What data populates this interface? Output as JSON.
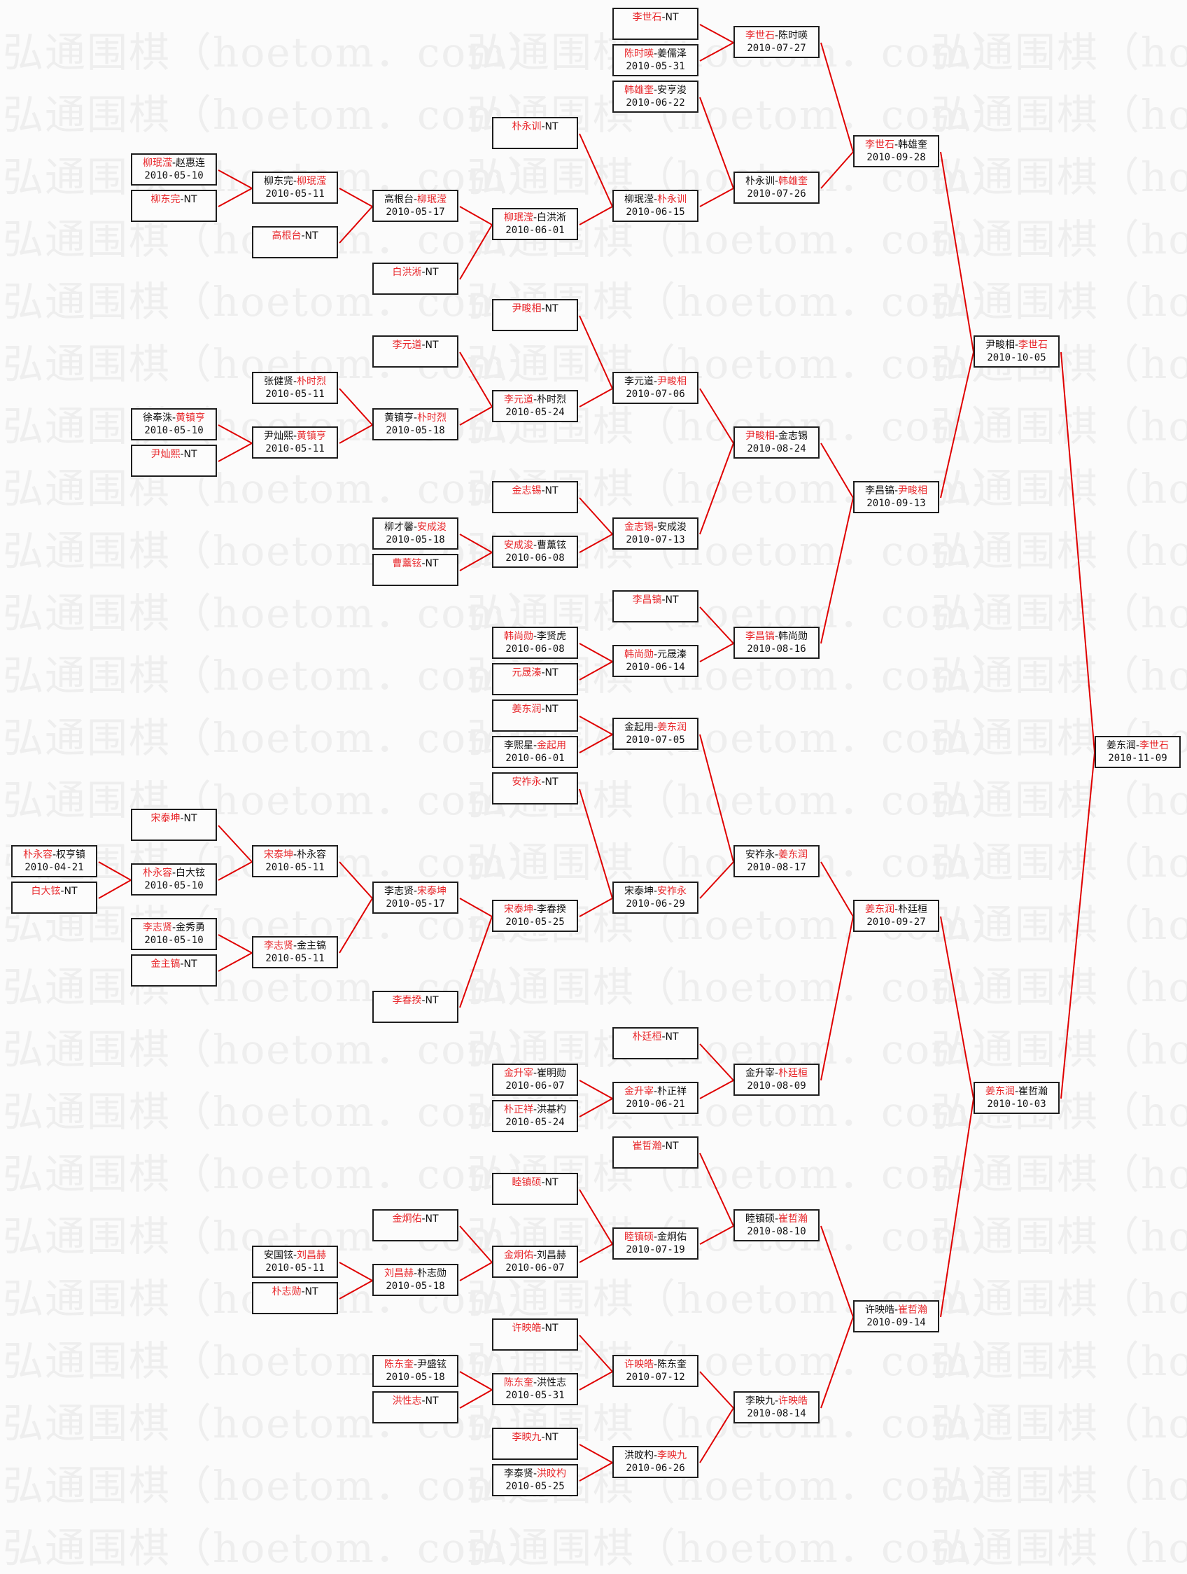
{
  "watermark_text": "弘通围棋（hoetom．com）",
  "colors": {
    "winner": "#e8262a",
    "connector": "#e00000",
    "border": "#1e1e1e"
  },
  "columns": [
    [
      {
        "p1": "朴永容",
        "p2": "权亨镇",
        "date": "2010-04-21",
        "winner": 1
      },
      {
        "p1": "白大铉",
        "p2": "NT",
        "date": "",
        "winner": 1
      }
    ],
    [
      {
        "p1": "柳珉滢",
        "p2": "赵惠连",
        "date": "2010-05-10",
        "winner": 1
      },
      {
        "p1": "柳东完",
        "p2": "NT",
        "date": "",
        "winner": 1
      },
      {
        "p1": "徐奉洙",
        "p2": "黄镇亨",
        "date": "2010-05-10",
        "winner": 2
      },
      {
        "p1": "尹灿熙",
        "p2": "NT",
        "date": "",
        "winner": 1
      },
      {
        "p1": "宋泰坤",
        "p2": "NT",
        "date": "",
        "winner": 1
      },
      {
        "p1": "朴永容",
        "p2": "白大铉",
        "date": "2010-05-10",
        "winner": 1
      },
      {
        "p1": "李志贤",
        "p2": "金秀勇",
        "date": "2010-05-10",
        "winner": 1
      },
      {
        "p1": "金主镐",
        "p2": "NT",
        "date": "",
        "winner": 1
      }
    ],
    [
      {
        "p1": "柳东完",
        "p2": "柳珉滢",
        "date": "2010-05-11",
        "winner": 2
      },
      {
        "p1": "高根台",
        "p2": "NT",
        "date": "",
        "winner": 1
      },
      {
        "p1": "张健贤",
        "p2": "朴时烈",
        "date": "2010-05-11",
        "winner": 2
      },
      {
        "p1": "尹灿熙",
        "p2": "黄镇亨",
        "date": "2010-05-11",
        "winner": 2
      },
      {
        "p1": "宋泰坤",
        "p2": "朴永容",
        "date": "2010-05-11",
        "winner": 1
      },
      {
        "p1": "李志贤",
        "p2": "金主镐",
        "date": "2010-05-11",
        "winner": 1
      },
      {
        "p1": "安国铉",
        "p2": "刘昌赫",
        "date": "2010-05-11",
        "winner": 2
      },
      {
        "p1": "朴志勋",
        "p2": "NT",
        "date": "",
        "winner": 1
      }
    ],
    [
      {
        "p1": "高根台",
        "p2": "柳珉滢",
        "date": "2010-05-17",
        "winner": 2
      },
      {
        "p1": "白洪淅",
        "p2": "NT",
        "date": "",
        "winner": 1
      },
      {
        "p1": "李元道",
        "p2": "NT",
        "date": "",
        "winner": 1
      },
      {
        "p1": "黄镇亨",
        "p2": "朴时烈",
        "date": "2010-05-18",
        "winner": 2
      },
      {
        "p1": "柳才馨",
        "p2": "安成浚",
        "date": "2010-05-18",
        "winner": 2
      },
      {
        "p1": "曹薰铉",
        "p2": "NT",
        "date": "",
        "winner": 1
      },
      {
        "p1": "李志贤",
        "p2": "宋泰坤",
        "date": "2010-05-17",
        "winner": 2
      },
      {
        "p1": "李春揆",
        "p2": "NT",
        "date": "",
        "winner": 1
      },
      {
        "p1": "金炯佑",
        "p2": "NT",
        "date": "",
        "winner": 1
      },
      {
        "p1": "刘昌赫",
        "p2": "朴志勋",
        "date": "2010-05-18",
        "winner": 1
      },
      {
        "p1": "陈东奎",
        "p2": "尹盛铉",
        "date": "2010-05-18",
        "winner": 1
      },
      {
        "p1": "洪性志",
        "p2": "NT",
        "date": "",
        "winner": 1
      }
    ],
    [
      {
        "p1": "朴永训",
        "p2": "NT",
        "date": "",
        "winner": 1
      },
      {
        "p1": "柳珉滢",
        "p2": "白洪淅",
        "date": "2010-06-01",
        "winner": 1
      },
      {
        "p1": "尹畯相",
        "p2": "NT",
        "date": "",
        "winner": 1
      },
      {
        "p1": "李元道",
        "p2": "朴时烈",
        "date": "2010-05-24",
        "winner": 1
      },
      {
        "p1": "金志锡",
        "p2": "NT",
        "date": "",
        "winner": 1
      },
      {
        "p1": "安成浚",
        "p2": "曹薰铉",
        "date": "2010-06-08",
        "winner": 1
      },
      {
        "p1": "韩尚勋",
        "p2": "李贤虎",
        "date": "2010-06-08",
        "winner": 1
      },
      {
        "p1": "元晟溱",
        "p2": "NT",
        "date": "",
        "winner": 1
      },
      {
        "p1": "姜东润",
        "p2": "NT",
        "date": "",
        "winner": 1
      },
      {
        "p1": "李熙星",
        "p2": "金起用",
        "date": "2010-06-01",
        "winner": 2
      },
      {
        "p1": "安祚永",
        "p2": "NT",
        "date": "",
        "winner": 1
      },
      {
        "p1": "宋泰坤",
        "p2": "李春揆",
        "date": "2010-05-25",
        "winner": 1
      },
      {
        "p1": "金升宰",
        "p2": "崔明勋",
        "date": "2010-06-07",
        "winner": 1
      },
      {
        "p1": "朴正祥",
        "p2": "洪基杓",
        "date": "2010-05-24",
        "winner": 1
      },
      {
        "p1": "睦镇硕",
        "p2": "NT",
        "date": "",
        "winner": 1
      },
      {
        "p1": "金炯佑",
        "p2": "刘昌赫",
        "date": "2010-06-07",
        "winner": 1
      },
      {
        "p1": "许映皓",
        "p2": "NT",
        "date": "",
        "winner": 1
      },
      {
        "p1": "陈东奎",
        "p2": "洪性志",
        "date": "2010-05-31",
        "winner": 1
      },
      {
        "p1": "李映九",
        "p2": "NT",
        "date": "",
        "winner": 1
      },
      {
        "p1": "李泰贤",
        "p2": "洪旼杓",
        "date": "2010-05-25",
        "winner": 2
      }
    ],
    [
      {
        "p1": "李世石",
        "p2": "NT",
        "date": "",
        "winner": 1
      },
      {
        "p1": "陈时暎",
        "p2": "姜儒泽",
        "date": "2010-05-31",
        "winner": 1
      },
      {
        "p1": "韩雄奎",
        "p2": "安亨浚",
        "date": "2010-06-22",
        "winner": 1
      },
      {
        "p1": "柳珉滢",
        "p2": "朴永训",
        "date": "2010-06-15",
        "winner": 2
      },
      {
        "p1": "李元道",
        "p2": "尹畯相",
        "date": "2010-07-06",
        "winner": 2
      },
      {
        "p1": "金志锡",
        "p2": "安成浚",
        "date": "2010-07-13",
        "winner": 1
      },
      {
        "p1": "李昌镐",
        "p2": "NT",
        "date": "",
        "winner": 1
      },
      {
        "p1": "韩尚勋",
        "p2": "元晟溱",
        "date": "2010-06-14",
        "winner": 1
      },
      {
        "p1": "金起用",
        "p2": "姜东润",
        "date": "2010-07-05",
        "winner": 2
      },
      {
        "p1": "宋泰坤",
        "p2": "安祚永",
        "date": "2010-06-29",
        "winner": 2
      },
      {
        "p1": "朴廷桓",
        "p2": "NT",
        "date": "",
        "winner": 1
      },
      {
        "p1": "金升宰",
        "p2": "朴正祥",
        "date": "2010-06-21",
        "winner": 1
      },
      {
        "p1": "崔哲瀚",
        "p2": "NT",
        "date": "",
        "winner": 1
      },
      {
        "p1": "睦镇硕",
        "p2": "金炯佑",
        "date": "2010-07-19",
        "winner": 1
      },
      {
        "p1": "许映皓",
        "p2": "陈东奎",
        "date": "2010-07-12",
        "winner": 1
      },
      {
        "p1": "洪旼杓",
        "p2": "李映九",
        "date": "2010-06-26",
        "winner": 2
      }
    ],
    [
      {
        "p1": "李世石",
        "p2": "陈时暎",
        "date": "2010-07-27",
        "winner": 1
      },
      {
        "p1": "朴永训",
        "p2": "韩雄奎",
        "date": "2010-07-26",
        "winner": 2
      },
      {
        "p1": "尹畯相",
        "p2": "金志锡",
        "date": "2010-08-24",
        "winner": 1
      },
      {
        "p1": "李昌镐",
        "p2": "韩尚勋",
        "date": "2010-08-16",
        "winner": 1
      },
      {
        "p1": "安祚永",
        "p2": "姜东润",
        "date": "2010-08-17",
        "winner": 2
      },
      {
        "p1": "金升宰",
        "p2": "朴廷桓",
        "date": "2010-08-09",
        "winner": 2
      },
      {
        "p1": "睦镇硕",
        "p2": "崔哲瀚",
        "date": "2010-08-10",
        "winner": 2
      },
      {
        "p1": "李映九",
        "p2": "许映皓",
        "date": "2010-08-14",
        "winner": 2
      }
    ],
    [
      {
        "p1": "李世石",
        "p2": "韩雄奎",
        "date": "2010-09-28",
        "winner": 1
      },
      {
        "p1": "李昌镐",
        "p2": "尹畯相",
        "date": "2010-09-13",
        "winner": 2
      },
      {
        "p1": "姜东润",
        "p2": "朴廷桓",
        "date": "2010-09-27",
        "winner": 1
      },
      {
        "p1": "许映皓",
        "p2": "崔哲瀚",
        "date": "2010-09-14",
        "winner": 2
      }
    ],
    [
      {
        "p1": "尹畯相",
        "p2": "李世石",
        "date": "2010-10-05",
        "winner": 2
      },
      {
        "p1": "姜东润",
        "p2": "崔哲瀚",
        "date": "2010-10-03",
        "winner": 1
      }
    ],
    [
      {
        "p1": "姜东润",
        "p2": "李世石",
        "date": "2010-11-09",
        "winner": 2
      }
    ]
  ]
}
